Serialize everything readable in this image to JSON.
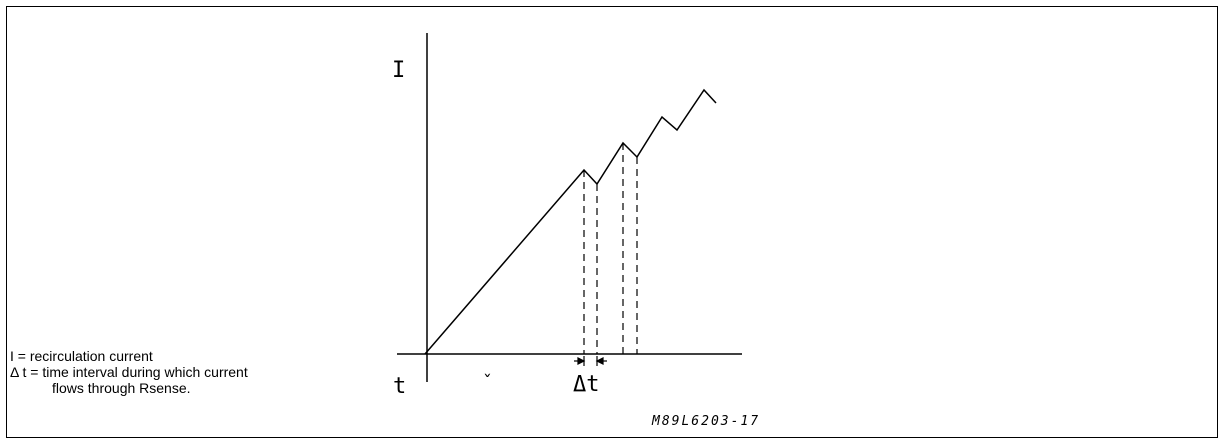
{
  "diagram": {
    "y_axis_label": "I",
    "x_axis_label": "t",
    "interval_label": "Δt",
    "reference_code": "M89L6203-17",
    "mark_glyph": "ˇ"
  },
  "legend": {
    "line1": "I = recirculation current",
    "line2": "Δ t = time interval during which current",
    "line3": "flows through Rsense."
  },
  "colors": {
    "ink": "#000000",
    "background": "#ffffff"
  }
}
